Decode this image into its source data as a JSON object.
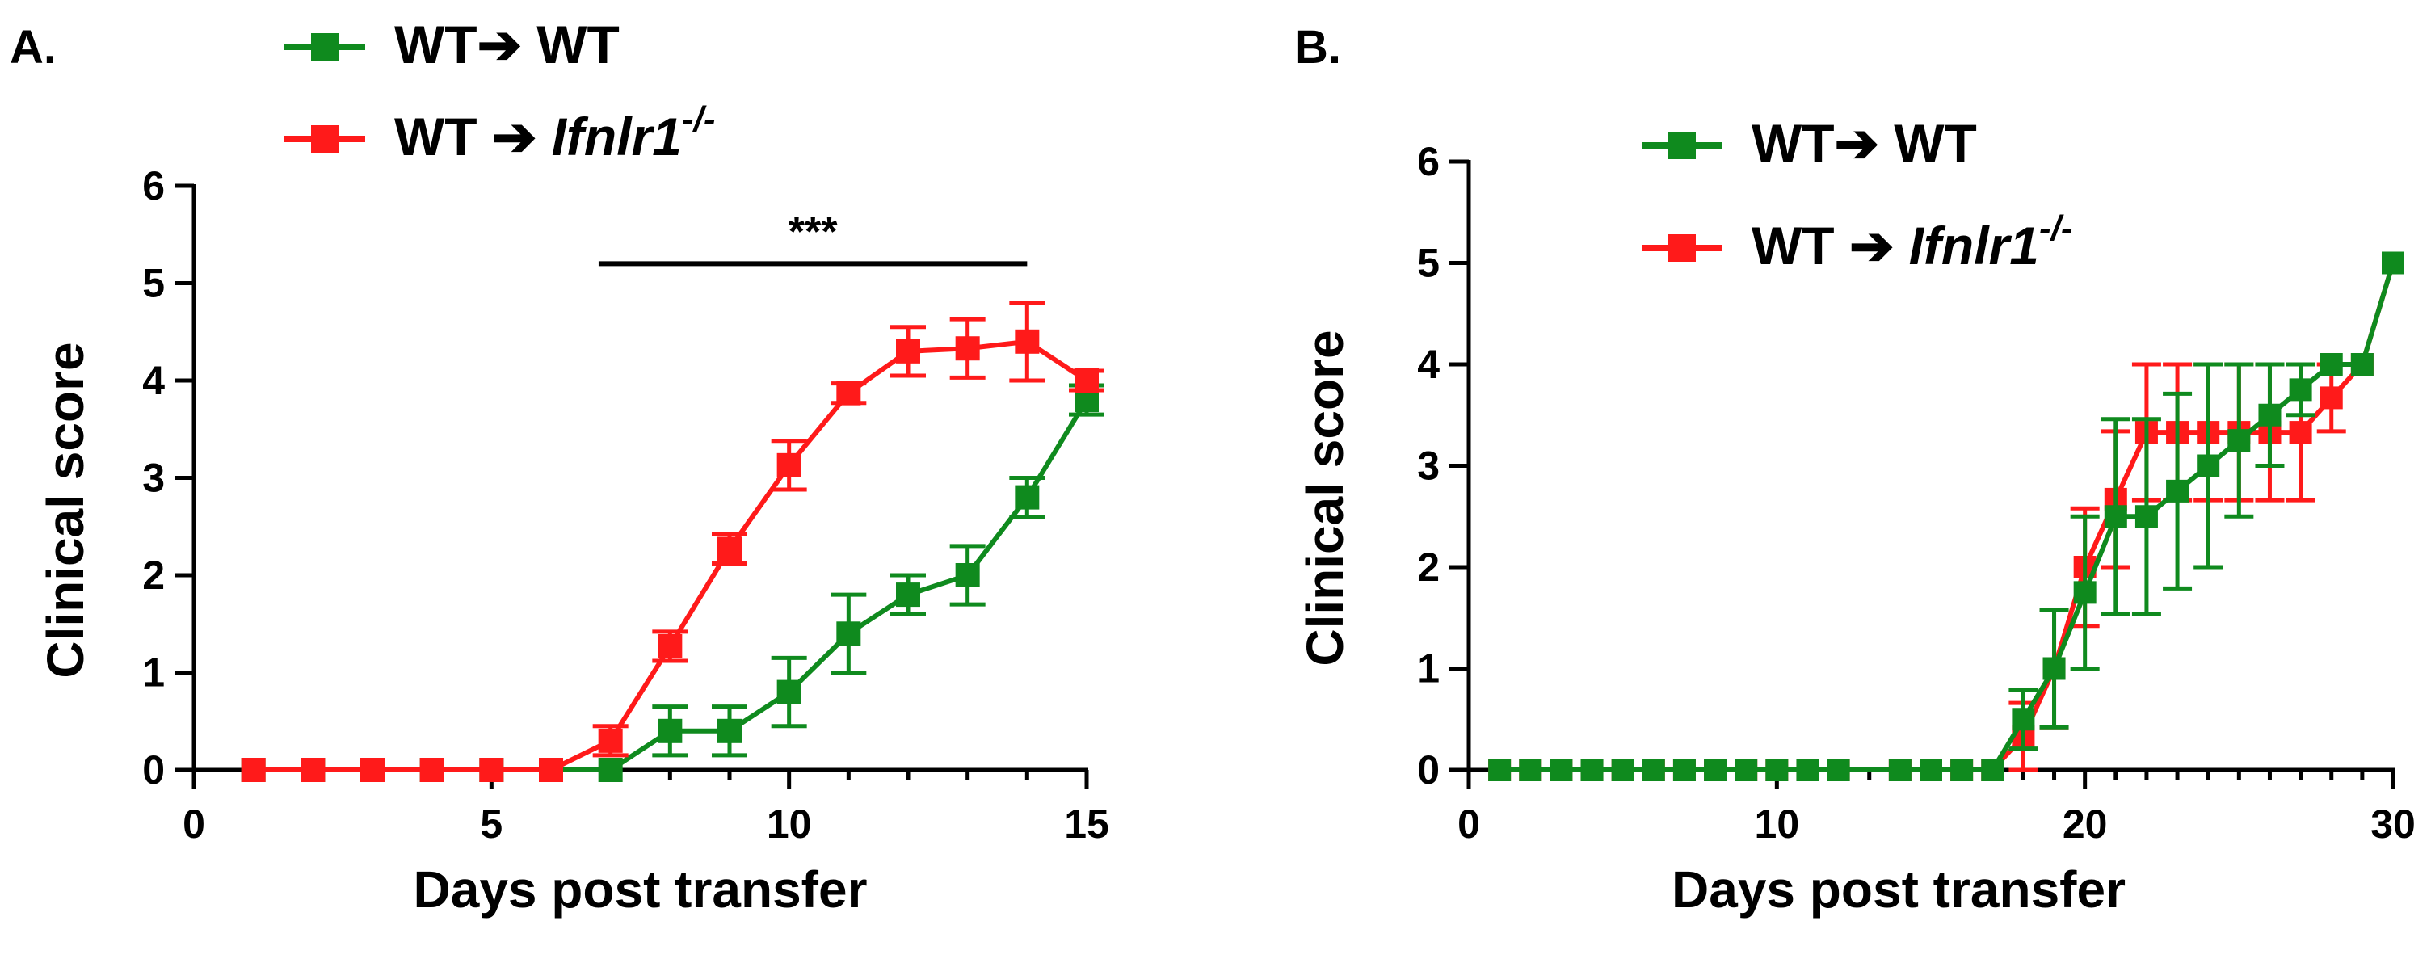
{
  "chart_data": [
    {
      "type": "line",
      "panel_label": "A.",
      "xlabel": "Days post transfer",
      "ylabel": "Clinical score",
      "xlim": [
        0,
        15
      ],
      "ylim": [
        0,
        6
      ],
      "xticks": [
        0,
        5,
        10,
        15
      ],
      "yticks": [
        0,
        1,
        2,
        3,
        4,
        5,
        6
      ],
      "legend_position": "top-left",
      "significance": {
        "label": "***",
        "x_start": 6.8,
        "x_end": 14,
        "y": 5.2
      },
      "series": [
        {
          "name": "WT➔ WT",
          "name_main": "WT➔ WT",
          "name_italic": "",
          "name_sup": "",
          "color": "#0f8a1e",
          "x": [
            1,
            2,
            3,
            4,
            5,
            6,
            7,
            8,
            9,
            10,
            11,
            12,
            13,
            14,
            15
          ],
          "y": [
            0,
            0,
            0,
            0,
            0,
            0,
            0,
            0.4,
            0.4,
            0.8,
            1.4,
            1.8,
            2.0,
            2.8,
            3.8
          ],
          "error": [
            0,
            0,
            0,
            0,
            0,
            0,
            0,
            0.25,
            0.25,
            0.35,
            0.4,
            0.2,
            0.3,
            0.2,
            0.15
          ]
        },
        {
          "name": "WT ➔ Ifnlr1-/-",
          "name_main": "WT ➔ ",
          "name_italic": "Ifnlr1",
          "name_sup": "-/-",
          "color": "#ff1a1a",
          "x": [
            1,
            2,
            3,
            4,
            5,
            6,
            7,
            8,
            9,
            10,
            11,
            12,
            13,
            14,
            15
          ],
          "y": [
            0,
            0,
            0,
            0,
            0,
            0,
            0.3,
            1.27,
            2.27,
            3.13,
            3.87,
            4.3,
            4.33,
            4.4,
            4.0
          ],
          "error": [
            0,
            0,
            0,
            0,
            0,
            0,
            0.15,
            0.15,
            0.15,
            0.25,
            0.1,
            0.25,
            0.3,
            0.4,
            0.1
          ]
        }
      ]
    },
    {
      "type": "line",
      "panel_label": "B.",
      "xlabel": "Days post transfer",
      "ylabel": "Clinical score",
      "xlim": [
        0,
        30
      ],
      "ylim": [
        0,
        6
      ],
      "xticks": [
        0,
        10,
        20,
        30
      ],
      "yticks": [
        0,
        1,
        2,
        3,
        4,
        5,
        6
      ],
      "legend_position": "top-left",
      "series": [
        {
          "name": "WT ➔ Ifnlr1-/-",
          "name_main": "WT ➔ ",
          "name_italic": "Ifnlr1",
          "name_sup": "-/-",
          "color": "#ff1a1a",
          "x": [
            1,
            2,
            3,
            4,
            5,
            6,
            7,
            8,
            9,
            10,
            11,
            12,
            14,
            15,
            16,
            17,
            18,
            19,
            20,
            21,
            22,
            23,
            24,
            25,
            26,
            27,
            28,
            29,
            30
          ],
          "y": [
            0,
            0,
            0,
            0,
            0,
            0,
            0,
            0,
            0,
            0,
            0,
            0,
            0,
            0,
            0,
            0,
            0.33,
            1.0,
            2.0,
            2.67,
            3.33,
            3.33,
            3.33,
            3.33,
            3.33,
            3.33,
            3.67,
            4.0,
            5.0
          ],
          "error": [
            0,
            0,
            0,
            0,
            0,
            0,
            0,
            0,
            0,
            0,
            0,
            0,
            0,
            0,
            0,
            0,
            0.33,
            0.58,
            0.58,
            0.67,
            0.67,
            0.67,
            0.67,
            0.67,
            0.67,
            0.67,
            0.33,
            0,
            0
          ]
        },
        {
          "name": "WT➔ WT",
          "name_main": "WT➔ WT",
          "name_italic": "",
          "name_sup": "",
          "color": "#0f8a1e",
          "x": [
            1,
            2,
            3,
            4,
            5,
            6,
            7,
            8,
            9,
            10,
            11,
            12,
            14,
            15,
            16,
            17,
            18,
            19,
            20,
            21,
            22,
            23,
            24,
            25,
            26,
            27,
            28,
            29,
            30
          ],
          "y": [
            0,
            0,
            0,
            0,
            0,
            0,
            0,
            0,
            0,
            0,
            0,
            0,
            0,
            0,
            0,
            0,
            0.5,
            1.0,
            1.75,
            2.5,
            2.5,
            2.75,
            3.0,
            3.25,
            3.5,
            3.75,
            4.0,
            4.0,
            5.0
          ],
          "error": [
            0,
            0,
            0,
            0,
            0,
            0,
            0,
            0,
            0,
            0,
            0,
            0,
            0,
            0,
            0,
            0,
            0.29,
            0.58,
            0.75,
            0.96,
            0.96,
            0.96,
            1.0,
            0.75,
            0.5,
            0.25,
            0,
            0,
            0
          ]
        }
      ]
    }
  ]
}
